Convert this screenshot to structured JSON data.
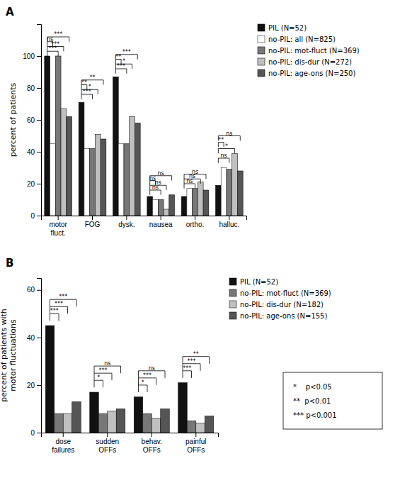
{
  "chart_data": [
    {
      "type": "bar",
      "title": "A",
      "categories": [
        "motor\nfluct.",
        "FOG",
        "dysk.",
        "nausea",
        "ortho.",
        "halluc."
      ],
      "series": [
        {
          "name": "PIL (N=52)",
          "color": "#111111",
          "values": [
            100,
            71,
            87,
            12,
            12,
            19
          ]
        },
        {
          "name": "no-PIL: all (N=825)",
          "color": "#ffffff",
          "values": [
            45,
            42,
            45,
            10,
            17,
            30
          ]
        },
        {
          "name": "no-PIL: mot-fluct (N=369)",
          "color": "#777777",
          "values": [
            100,
            42,
            45,
            10,
            17,
            29
          ]
        },
        {
          "name": "no-PIL: dis-dur (N=272)",
          "color": "#c0c0c0",
          "values": [
            67,
            51,
            62,
            4,
            21,
            39
          ]
        },
        {
          "name": "no-PIL: age-ons (N=250)",
          "color": "#555555",
          "values": [
            62,
            48,
            58,
            13,
            16,
            28
          ]
        }
      ],
      "ylabel": "percent of patients",
      "ylim": [
        0,
        120
      ],
      "yticks": [
        0,
        20,
        40,
        60,
        80,
        100
      ],
      "legend": "right",
      "brackets": [
        {
          "category": 0,
          "from": 0,
          "to": 2,
          "y_bottom": 100,
          "y_top": 103,
          "label": "***"
        },
        {
          "category": 0,
          "from": 0,
          "to": 3,
          "y_bottom": 103,
          "y_top": 106,
          "label": "***"
        },
        {
          "category": 0,
          "from": 0,
          "to": 1,
          "y_bottom": 106,
          "y_top": 109,
          "label": "ns"
        },
        {
          "category": 0,
          "from": 0,
          "to": 4,
          "y_bottom": 109,
          "y_top": 112,
          "label": "***"
        },
        {
          "category": 1,
          "from": 0,
          "to": 2,
          "y_bottom": 73,
          "y_top": 76,
          "label": "***"
        },
        {
          "category": 1,
          "from": 0,
          "to": 3,
          "y_bottom": 76,
          "y_top": 79,
          "label": "*"
        },
        {
          "category": 1,
          "from": 0,
          "to": 1,
          "y_bottom": 79,
          "y_top": 82,
          "label": "**"
        },
        {
          "category": 1,
          "from": 0,
          "to": 4,
          "y_bottom": 82,
          "y_top": 85,
          "label": "**"
        },
        {
          "category": 2,
          "from": 0,
          "to": 2,
          "y_bottom": 89,
          "y_top": 92,
          "label": "***"
        },
        {
          "category": 2,
          "from": 0,
          "to": 3,
          "y_bottom": 92,
          "y_top": 95,
          "label": "*"
        },
        {
          "category": 2,
          "from": 0,
          "to": 1,
          "y_bottom": 95,
          "y_top": 98,
          "label": "**"
        },
        {
          "category": 2,
          "from": 0,
          "to": 4,
          "y_bottom": 98,
          "y_top": 101,
          "label": "***"
        },
        {
          "category": 3,
          "from": 0,
          "to": 2,
          "y_bottom": 13,
          "y_top": 16,
          "label": "ns"
        },
        {
          "category": 3,
          "from": 0,
          "to": 3,
          "y_bottom": 16,
          "y_top": 19,
          "label": "ns"
        },
        {
          "category": 3,
          "from": 0,
          "to": 1,
          "y_bottom": 19,
          "y_top": 22,
          "label": "ns"
        },
        {
          "category": 3,
          "from": 0,
          "to": 4,
          "y_bottom": 22,
          "y_top": 25,
          "label": "ns"
        },
        {
          "category": 4,
          "from": 0,
          "to": 2,
          "y_bottom": 17,
          "y_top": 20,
          "label": "ns"
        },
        {
          "category": 4,
          "from": 0,
          "to": 3,
          "y_bottom": 20,
          "y_top": 23,
          "label": "ns"
        },
        {
          "category": 4,
          "from": 0,
          "to": 4,
          "y_bottom": 23,
          "y_top": 26,
          "label": "ns"
        },
        {
          "category": 5,
          "from": 0,
          "to": 2,
          "y_bottom": 33,
          "y_top": 36,
          "label": "ns"
        },
        {
          "category": 5,
          "from": 0,
          "to": 3,
          "y_bottom": 39,
          "y_top": 42,
          "label": "*"
        },
        {
          "category": 5,
          "from": 0,
          "to": 1,
          "y_bottom": 43,
          "y_top": 46,
          "label": "**"
        },
        {
          "category": 5,
          "from": 0,
          "to": 4,
          "y_bottom": 47,
          "y_top": 50,
          "label": "ns"
        }
      ]
    },
    {
      "type": "bar",
      "title": "B",
      "categories": [
        "dose\nfailures",
        "sudden\nOFFs",
        "behav.\nOFFs",
        "painful\nOFFs"
      ],
      "series": [
        {
          "name": "PIL (N=52)",
          "color": "#111111",
          "values": [
            45,
            17,
            15,
            21
          ]
        },
        {
          "name": "no-PIL: mot-fluct (N=369)",
          "color": "#777777",
          "values": [
            8,
            8,
            8,
            5
          ]
        },
        {
          "name": "no-PIL: dis-dur (N=182)",
          "color": "#c0c0c0",
          "values": [
            8,
            9,
            6,
            4
          ]
        },
        {
          "name": "no-PIL: age-ons (N=155)",
          "color": "#555555",
          "values": [
            13,
            10,
            10,
            7
          ]
        }
      ],
      "ylabel": "percent of patients with\nmotor fluctuations",
      "ylim": [
        0,
        65
      ],
      "yticks": [
        0,
        20,
        40,
        60
      ],
      "legend": "right",
      "brackets": [
        {
          "category": 0,
          "from": 0,
          "to": 1,
          "y_bottom": 47,
          "y_top": 50,
          "label": "***"
        },
        {
          "category": 0,
          "from": 0,
          "to": 2,
          "y_bottom": 50,
          "y_top": 53,
          "label": "***"
        },
        {
          "category": 0,
          "from": 0,
          "to": 3,
          "y_bottom": 53,
          "y_top": 56,
          "label": "***"
        },
        {
          "category": 1,
          "from": 0,
          "to": 1,
          "y_bottom": 19,
          "y_top": 22,
          "label": "*"
        },
        {
          "category": 1,
          "from": 0,
          "to": 2,
          "y_bottom": 22,
          "y_top": 25,
          "label": "***"
        },
        {
          "category": 1,
          "from": 0,
          "to": 3,
          "y_bottom": 25,
          "y_top": 28,
          "label": "ns"
        },
        {
          "category": 2,
          "from": 0,
          "to": 1,
          "y_bottom": 17,
          "y_top": 20,
          "label": "*"
        },
        {
          "category": 2,
          "from": 0,
          "to": 2,
          "y_bottom": 20,
          "y_top": 23,
          "label": "***"
        },
        {
          "category": 2,
          "from": 0,
          "to": 3,
          "y_bottom": 23,
          "y_top": 26,
          "label": "ns"
        },
        {
          "category": 3,
          "from": 0,
          "to": 1,
          "y_bottom": 23,
          "y_top": 26,
          "label": "***"
        },
        {
          "category": 3,
          "from": 0,
          "to": 2,
          "y_bottom": 26,
          "y_top": 29,
          "label": "***"
        },
        {
          "category": 3,
          "from": 0,
          "to": 3,
          "y_bottom": 29,
          "y_top": 32,
          "label": "**"
        }
      ],
      "annotations": [
        "*    p<0.05",
        "**  p<0.01",
        "*** p<0.001"
      ]
    }
  ]
}
